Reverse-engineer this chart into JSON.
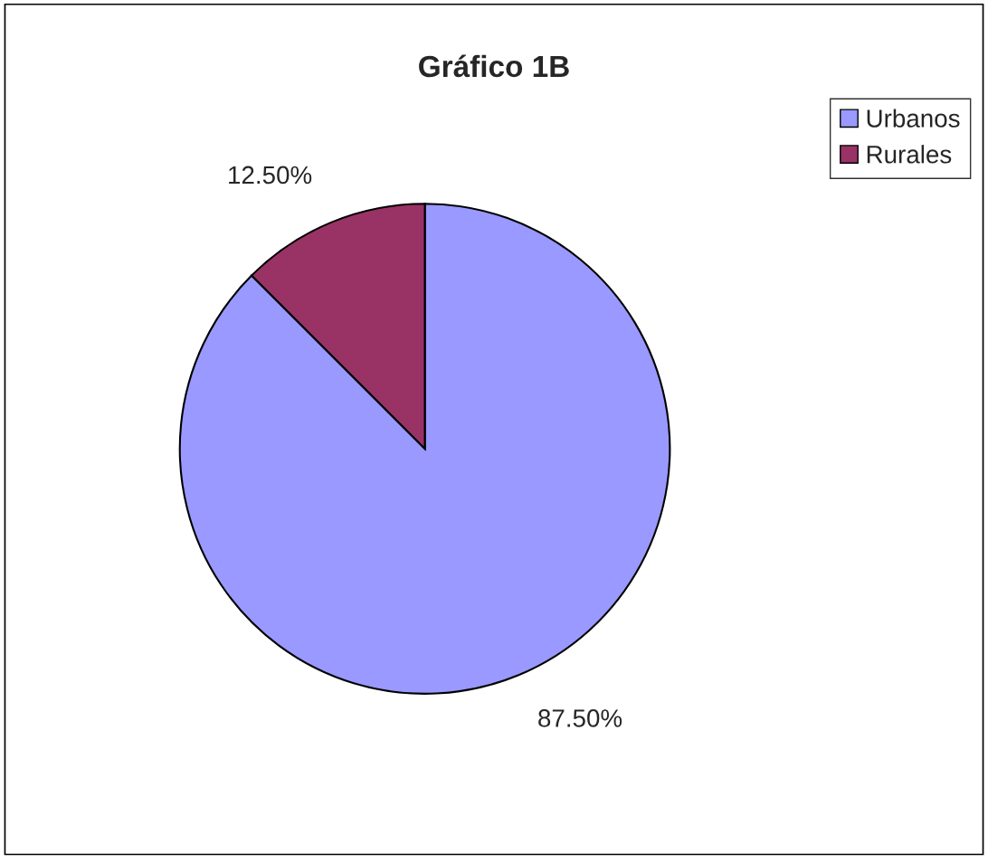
{
  "chart_data": {
    "type": "pie",
    "title": "Gráfico 1B",
    "categories": [
      "Urbanos",
      "Rurales"
    ],
    "values": [
      87.5,
      12.5
    ],
    "colors": [
      "#9999ff",
      "#993366"
    ],
    "value_labels": [
      "87.50%",
      "12.50%"
    ],
    "legend": "top right"
  }
}
